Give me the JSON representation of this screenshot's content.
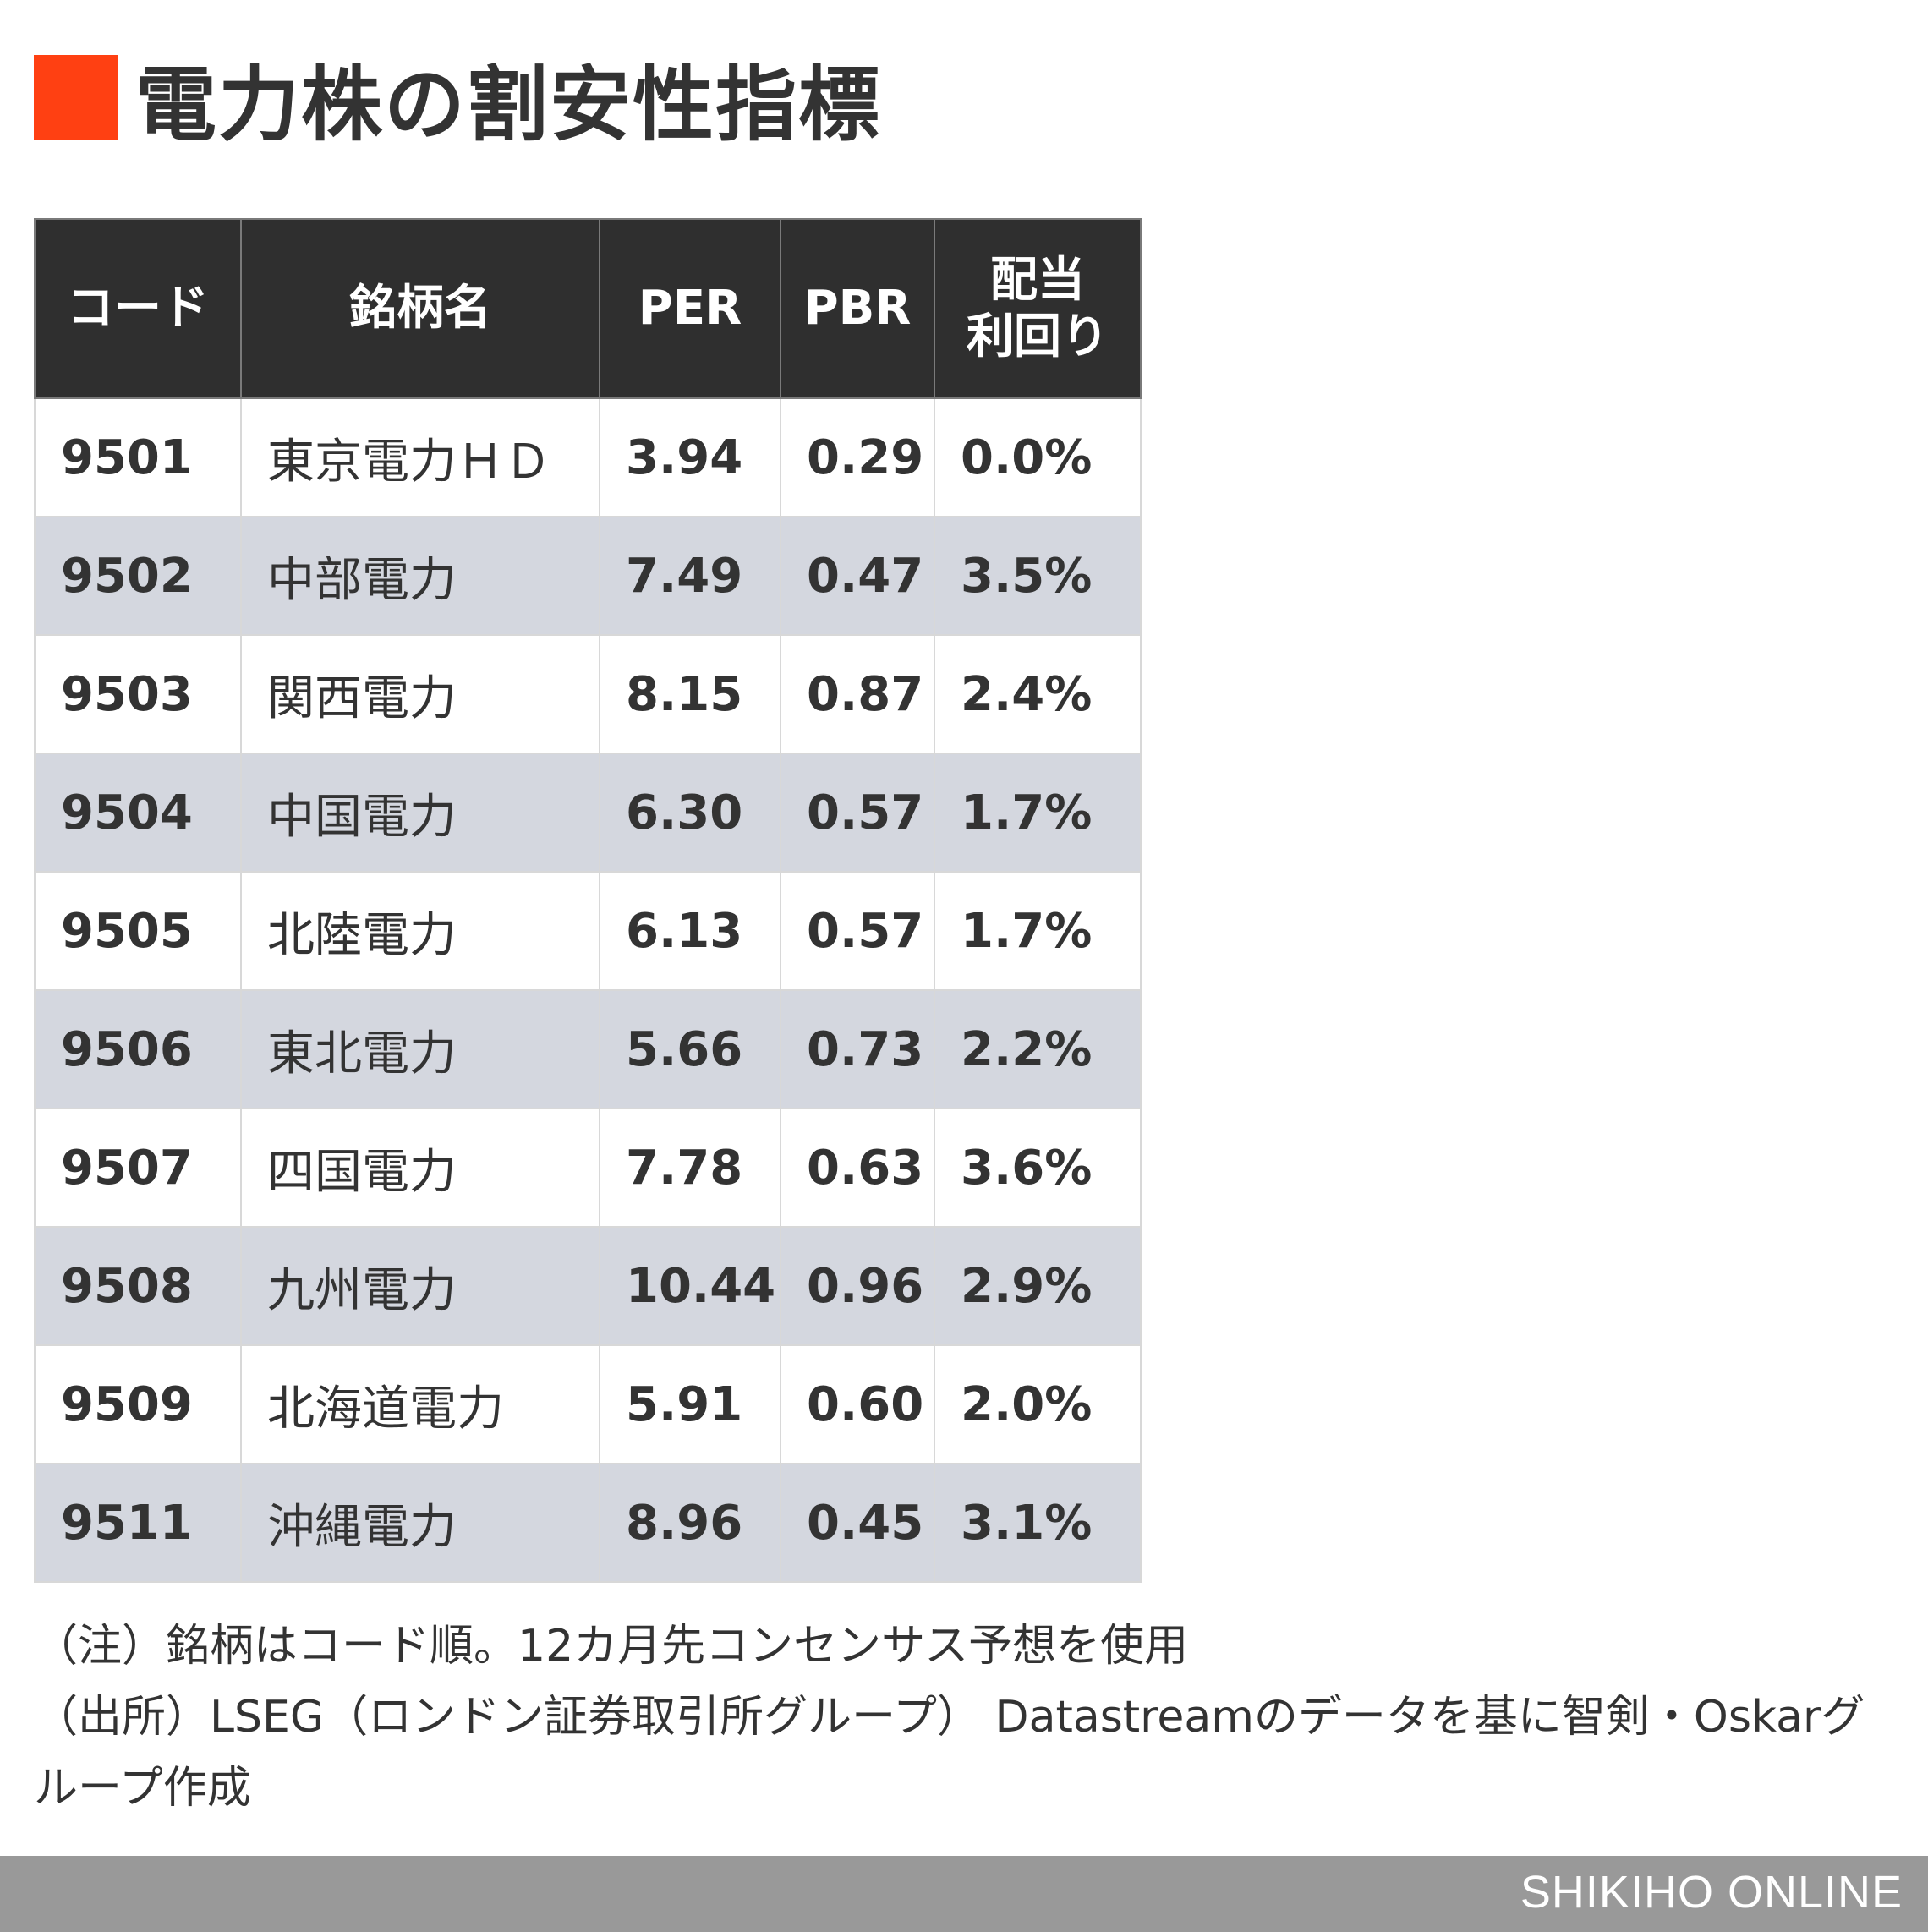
{
  "title": "電力株の割安性指標",
  "colors": {
    "accent": "#ff4012",
    "header_bg": "#2f2f2f",
    "row_alt_bg": "#d4d7df",
    "footer_bg": "#999999"
  },
  "table": {
    "headers": [
      "コード",
      "銘柄名",
      "PER",
      "PBR",
      "配当利回り"
    ],
    "header_dividend_line1": "配当",
    "header_dividend_line2": "利回り",
    "rows": [
      [
        "9501",
        "東京電力ＨＤ",
        "3.94",
        "0.29",
        "0.0%"
      ],
      [
        "9502",
        "中部電力",
        "7.49",
        "0.47",
        "3.5%"
      ],
      [
        "9503",
        "関西電力",
        "8.15",
        "0.87",
        "2.4%"
      ],
      [
        "9504",
        "中国電力",
        "6.30",
        "0.57",
        "1.7%"
      ],
      [
        "9505",
        "北陸電力",
        "6.13",
        "0.57",
        "1.7%"
      ],
      [
        "9506",
        "東北電力",
        "5.66",
        "0.73",
        "2.2%"
      ],
      [
        "9507",
        "四国電力",
        "7.78",
        "0.63",
        "3.6%"
      ],
      [
        "9508",
        "九州電力",
        "10.44",
        "0.96",
        "2.9%"
      ],
      [
        "9509",
        "北海道電力",
        "5.91",
        "0.60",
        "2.0%"
      ],
      [
        "9511",
        "沖縄電力",
        "8.96",
        "0.45",
        "3.1%"
      ]
    ]
  },
  "notes": [
    "（注）銘柄はコード順。12カ月先コンセンサス予想を使用",
    "（出所）LSEG（ロンドン証券取引所グループ） Datastreamのデータを基に智剣・Oskarグループ作成"
  ],
  "footer": {
    "brand": "SHIKIHO ONLINE"
  }
}
